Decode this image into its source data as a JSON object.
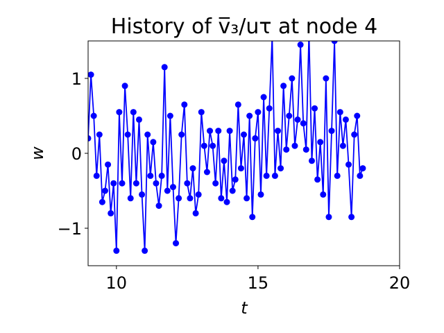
{
  "chart_data": {
    "type": "line",
    "title": "History of v̅₃/uτ at node 4",
    "xlabel": "t",
    "ylabel": "w",
    "x": [
      9.0,
      9.1,
      9.2,
      9.3,
      9.4,
      9.5,
      9.6,
      9.7,
      9.8,
      9.9,
      10.0,
      10.1,
      10.2,
      10.3,
      10.4,
      10.5,
      10.6,
      10.7,
      10.8,
      10.9,
      11.0,
      11.1,
      11.2,
      11.3,
      11.4,
      11.5,
      11.6,
      11.7,
      11.8,
      11.9,
      12.0,
      12.1,
      12.2,
      12.3,
      12.4,
      12.5,
      12.6,
      12.7,
      12.8,
      12.9,
      13.0,
      13.1,
      13.2,
      13.3,
      13.4,
      13.5,
      13.6,
      13.7,
      13.8,
      13.9,
      14.0,
      14.1,
      14.2,
      14.3,
      14.4,
      14.5,
      14.6,
      14.7,
      14.8,
      14.9,
      15.0,
      15.1,
      15.2,
      15.3,
      15.4,
      15.5,
      15.6,
      15.7,
      15.8,
      15.9,
      16.0,
      16.1,
      16.2,
      16.3,
      16.4,
      16.5,
      16.6,
      16.7,
      16.8,
      16.9,
      17.0,
      17.1,
      17.2,
      17.3,
      17.4,
      17.5,
      17.6,
      17.7,
      17.8,
      17.9,
      18.0,
      18.1,
      18.2,
      18.3,
      18.4,
      18.5,
      18.6,
      18.7
    ],
    "series": [
      {
        "name": "w",
        "color": "#0000ff",
        "values": [
          0.2,
          1.05,
          0.5,
          -0.3,
          0.25,
          -0.65,
          -0.5,
          -0.15,
          -0.8,
          -0.4,
          -1.3,
          0.55,
          -0.4,
          0.9,
          0.25,
          -0.6,
          0.55,
          -0.4,
          0.45,
          -0.55,
          -1.3,
          0.25,
          -0.3,
          0.15,
          -0.4,
          -0.7,
          -0.3,
          1.15,
          -0.5,
          0.5,
          -0.45,
          -1.2,
          -0.6,
          0.25,
          0.65,
          -0.4,
          -0.6,
          -0.2,
          -0.8,
          -0.55,
          0.55,
          0.1,
          -0.25,
          0.3,
          0.1,
          -0.4,
          0.3,
          -0.6,
          -0.1,
          -0.65,
          0.3,
          -0.5,
          -0.35,
          0.65,
          -0.2,
          0.25,
          -0.6,
          0.5,
          -0.85,
          0.2,
          0.55,
          -0.55,
          0.75,
          -0.3,
          0.6,
          1.55,
          -0.3,
          0.3,
          -0.2,
          0.9,
          0.05,
          0.5,
          1.0,
          0.1,
          0.45,
          1.45,
          0.4,
          0.05,
          1.6,
          -0.1,
          0.6,
          -0.35,
          0.15,
          -0.55,
          1.0,
          -0.85,
          0.3,
          1.5,
          -0.3,
          0.55,
          0.1,
          0.45,
          -0.15,
          -0.85,
          0.25,
          0.5,
          -0.3,
          -0.2
        ]
      }
    ],
    "xlim": [
      9,
      20
    ],
    "ylim": [
      -1.5,
      1.5
    ],
    "xticks": [
      10,
      15,
      20
    ],
    "yticks": [
      {
        "value": -1,
        "label": "−1"
      },
      0,
      1
    ]
  }
}
